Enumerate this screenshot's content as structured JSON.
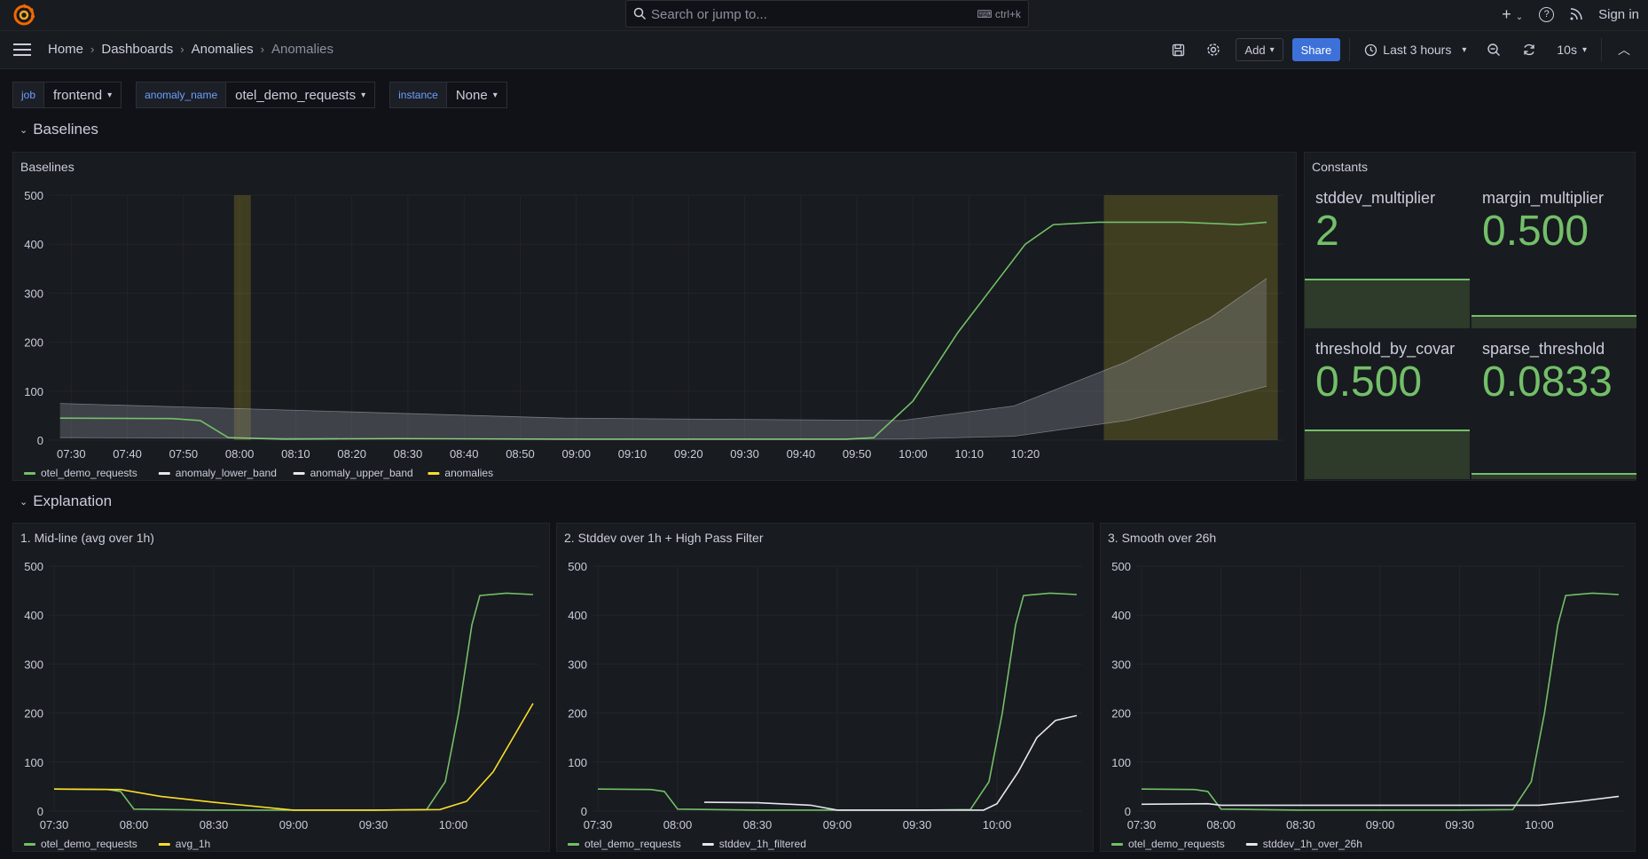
{
  "topbar": {
    "search_placeholder": "Search or jump to...",
    "search_shortcut": "ctrl+k",
    "sign_in": "Sign in"
  },
  "breadcrumbs": [
    "Home",
    "Dashboards",
    "Anomalies",
    "Anomalies"
  ],
  "toolbar": {
    "add_label": "Add",
    "share_label": "Share",
    "time_range": "Last 3 hours",
    "refresh_interval": "10s"
  },
  "variables": [
    {
      "name": "job",
      "value": "frontend"
    },
    {
      "name": "anomaly_name",
      "value": "otel_demo_requests"
    },
    {
      "name": "instance",
      "value": "None"
    }
  ],
  "rows": {
    "baselines": "Baselines",
    "explanation": "Explanation"
  },
  "colors": {
    "green": "#73bf69",
    "yellow": "#fade2a",
    "white": "#e6e6f0",
    "band": "#8a8d94",
    "anomaly_region": "#fade2a"
  },
  "panels": {
    "baselines": {
      "title": "Baselines"
    },
    "constants": {
      "title": "Constants"
    },
    "midline": {
      "title": "1. Mid-line (avg over 1h)"
    },
    "stddev": {
      "title": "2. Stddev over 1h + High Pass Filter"
    },
    "smooth": {
      "title": "3. Smooth over 26h"
    }
  },
  "constants": [
    {
      "label": "stddev_multiplier",
      "value": "2",
      "fraction": 0.33
    },
    {
      "label": "margin_multiplier",
      "value": "0.500",
      "fraction": 0.08
    },
    {
      "label": "threshold_by_covar",
      "value": "0.500",
      "fraction": 0.33
    },
    {
      "label": "sparse_threshold",
      "value": "0.0833",
      "fraction": 0.03
    }
  ],
  "chart_data": [
    {
      "type": "line",
      "title": "Baselines",
      "ylim": [
        0,
        500
      ],
      "y_ticks": [
        0,
        100,
        200,
        300,
        400,
        500
      ],
      "x_ticks": [
        "07:30",
        "07:40",
        "07:50",
        "08:00",
        "08:10",
        "08:20",
        "08:30",
        "08:40",
        "08:50",
        "09:00",
        "09:10",
        "09:20",
        "09:30",
        "09:40",
        "09:50",
        "10:00",
        "10:10",
        "10:20"
      ],
      "x_range_minutes": [
        0,
        180
      ],
      "x_origin": "07:28",
      "legend": [
        "otel_demo_requests",
        "anomaly_lower_band",
        "anomaly_upper_band",
        "anomalies"
      ],
      "legend_position": "bottom",
      "series": [
        {
          "name": "otel_demo_requests",
          "color": "#73bf69",
          "points": [
            [
              0,
              45
            ],
            [
              20,
              44
            ],
            [
              25,
              40
            ],
            [
              30,
              5
            ],
            [
              40,
              2
            ],
            [
              60,
              3
            ],
            [
              90,
              2
            ],
            [
              120,
              2
            ],
            [
              140,
              2
            ],
            [
              145,
              5
            ],
            [
              152,
              80
            ],
            [
              160,
              220
            ],
            [
              168,
              340
            ],
            [
              172,
              400
            ],
            [
              177,
              440
            ],
            [
              185,
              445
            ],
            [
              200,
              445
            ],
            [
              210,
              440
            ],
            [
              215,
              445
            ]
          ]
        },
        {
          "name": "anomaly_lower_band",
          "color": "#e6e6f0",
          "points": [
            [
              0,
              5
            ],
            [
              30,
              4
            ],
            [
              90,
              2
            ],
            [
              150,
              2
            ],
            [
              170,
              8
            ],
            [
              190,
              40
            ],
            [
              205,
              80
            ],
            [
              215,
              110
            ]
          ]
        },
        {
          "name": "anomaly_upper_band",
          "color": "#e6e6f0",
          "points": [
            [
              0,
              75
            ],
            [
              30,
              65
            ],
            [
              90,
              45
            ],
            [
              150,
              40
            ],
            [
              170,
              70
            ],
            [
              190,
              160
            ],
            [
              205,
              250
            ],
            [
              215,
              330
            ]
          ]
        }
      ],
      "anomaly_regions": [
        [
          31,
          34
        ],
        [
          186,
          217
        ]
      ]
    },
    {
      "type": "line",
      "title": "1. Mid-line (avg over 1h)",
      "ylim": [
        0,
        500
      ],
      "y_ticks": [
        0,
        100,
        200,
        300,
        400,
        500
      ],
      "x_ticks": [
        "07:30",
        "08:00",
        "08:30",
        "09:00",
        "09:30",
        "10:00"
      ],
      "legend": [
        "otel_demo_requests",
        "avg_1h"
      ],
      "legend_position": "bottom",
      "series": [
        {
          "name": "otel_demo_requests",
          "color": "#73bf69",
          "points": [
            [
              0,
              45
            ],
            [
              20,
              44
            ],
            [
              25,
              40
            ],
            [
              30,
              4
            ],
            [
              60,
              2
            ],
            [
              120,
              2
            ],
            [
              140,
              3
            ],
            [
              147,
              60
            ],
            [
              152,
              200
            ],
            [
              157,
              380
            ],
            [
              160,
              440
            ],
            [
              170,
              445
            ],
            [
              180,
              442
            ]
          ]
        },
        {
          "name": "avg_1h",
          "color": "#fade2a",
          "points": [
            [
              0,
              45
            ],
            [
              25,
              44
            ],
            [
              40,
              30
            ],
            [
              60,
              18
            ],
            [
              90,
              2
            ],
            [
              120,
              2
            ],
            [
              145,
              3
            ],
            [
              155,
              20
            ],
            [
              165,
              80
            ],
            [
              180,
              220
            ]
          ]
        }
      ]
    },
    {
      "type": "line",
      "title": "2. Stddev over 1h + High Pass Filter",
      "ylim": [
        0,
        500
      ],
      "y_ticks": [
        0,
        100,
        200,
        300,
        400,
        500
      ],
      "x_ticks": [
        "07:30",
        "08:00",
        "08:30",
        "09:00",
        "09:30",
        "10:00"
      ],
      "legend": [
        "otel_demo_requests",
        "stddev_1h_filtered"
      ],
      "legend_position": "bottom",
      "series": [
        {
          "name": "otel_demo_requests",
          "color": "#73bf69",
          "points": [
            [
              0,
              45
            ],
            [
              20,
              44
            ],
            [
              25,
              40
            ],
            [
              30,
              4
            ],
            [
              60,
              2
            ],
            [
              120,
              2
            ],
            [
              140,
              3
            ],
            [
              147,
              60
            ],
            [
              152,
              200
            ],
            [
              157,
              380
            ],
            [
              160,
              440
            ],
            [
              170,
              445
            ],
            [
              180,
              442
            ]
          ]
        },
        {
          "name": "stddev_1h_filtered",
          "color": "#e6e6f0",
          "points": [
            [
              40,
              18
            ],
            [
              60,
              17
            ],
            [
              80,
              12
            ],
            [
              90,
              2
            ],
            [
              145,
              2
            ],
            [
              150,
              15
            ],
            [
              158,
              80
            ],
            [
              165,
              150
            ],
            [
              172,
              185
            ],
            [
              180,
              195
            ]
          ]
        }
      ]
    },
    {
      "type": "line",
      "title": "3. Smooth over 26h",
      "ylim": [
        0,
        500
      ],
      "y_ticks": [
        0,
        100,
        200,
        300,
        400,
        500
      ],
      "x_ticks": [
        "07:30",
        "08:00",
        "08:30",
        "09:00",
        "09:30",
        "10:00"
      ],
      "legend": [
        "otel_demo_requests",
        "stddev_1h_over_26h"
      ],
      "legend_position": "bottom",
      "series": [
        {
          "name": "otel_demo_requests",
          "color": "#73bf69",
          "points": [
            [
              0,
              45
            ],
            [
              20,
              44
            ],
            [
              25,
              40
            ],
            [
              30,
              4
            ],
            [
              60,
              2
            ],
            [
              120,
              2
            ],
            [
              140,
              3
            ],
            [
              147,
              60
            ],
            [
              152,
              200
            ],
            [
              157,
              380
            ],
            [
              160,
              440
            ],
            [
              170,
              445
            ],
            [
              180,
              442
            ]
          ]
        },
        {
          "name": "stddev_1h_over_26h",
          "color": "#e6e6f0",
          "points": [
            [
              0,
              14
            ],
            [
              25,
              15
            ],
            [
              30,
              12
            ],
            [
              150,
              12
            ],
            [
              165,
              20
            ],
            [
              180,
              30
            ]
          ]
        }
      ]
    }
  ]
}
